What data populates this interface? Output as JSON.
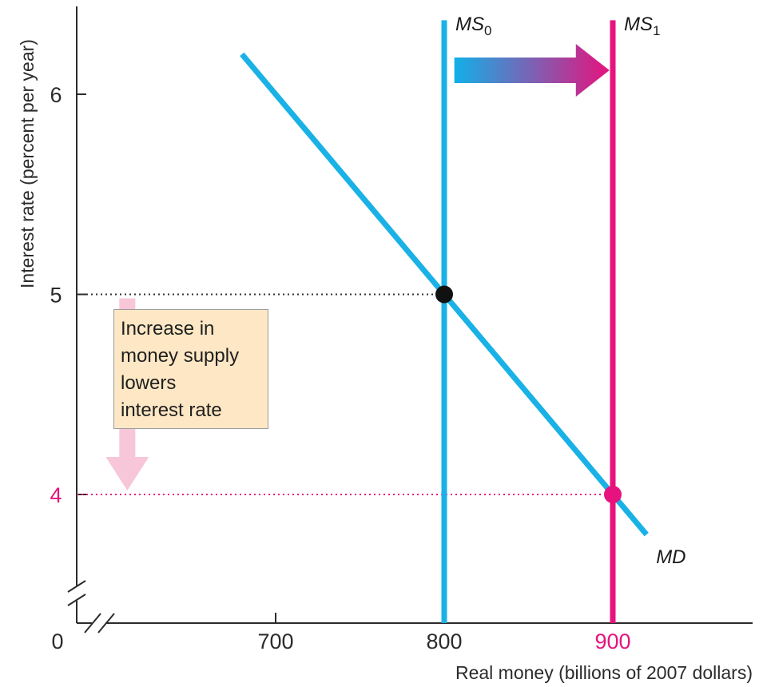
{
  "chart_data": {
    "type": "line",
    "title": "",
    "xlabel": "Real money (billions of 2007 dollars)",
    "ylabel": "Interest rate (percent per year)",
    "xlim": [
      600,
      1000
    ],
    "ylim": [
      3.5,
      6.4
    ],
    "x_ticks": [
      {
        "value": 700,
        "label": "700",
        "highlight": false
      },
      {
        "value": 800,
        "label": "800",
        "highlight": false
      },
      {
        "value": 900,
        "label": "900",
        "highlight": true
      }
    ],
    "y_ticks": [
      {
        "value": 6,
        "label": "6",
        "highlight": false
      },
      {
        "value": 5,
        "label": "5",
        "highlight": false
      },
      {
        "value": 4,
        "label": "4",
        "highlight": true
      }
    ],
    "origin_label": "0",
    "axis_breaks": true,
    "series": [
      {
        "name": "MD",
        "kind": "demand",
        "color": "#1ab2e6",
        "points": [
          [
            680,
            6.2
          ],
          [
            920,
            3.8
          ]
        ]
      },
      {
        "name": "MS0",
        "label_main": "MS",
        "label_sub": "0",
        "kind": "supply",
        "color": "#1ab2e6",
        "x": 800,
        "y_range": [
          3.5,
          6.37
        ]
      },
      {
        "name": "MS1",
        "label_main": "MS",
        "label_sub": "1",
        "kind": "supply",
        "color": "#e6137e",
        "x": 900,
        "y_range": [
          3.5,
          6.37
        ]
      }
    ],
    "equilibria": [
      {
        "x": 800,
        "y": 5,
        "color": "#111111"
      },
      {
        "x": 900,
        "y": 4,
        "color": "#e6137e"
      }
    ],
    "shift_arrow": {
      "from_x": 806,
      "to_x": 898,
      "y": 6.12,
      "color_start": "#12b0e8",
      "color_end": "#e6137e"
    },
    "rate_arrow": {
      "x": 612,
      "from_y": 4.98,
      "to_y": 4.02,
      "color": "#f7c6d8"
    },
    "annotation": {
      "lines": [
        "Increase in",
        "money supply",
        "lowers",
        "interest rate"
      ]
    },
    "colors": {
      "accent_blue": "#1ab2e6",
      "accent_pink": "#e6137e",
      "axis": "#2b2b2b"
    }
  }
}
